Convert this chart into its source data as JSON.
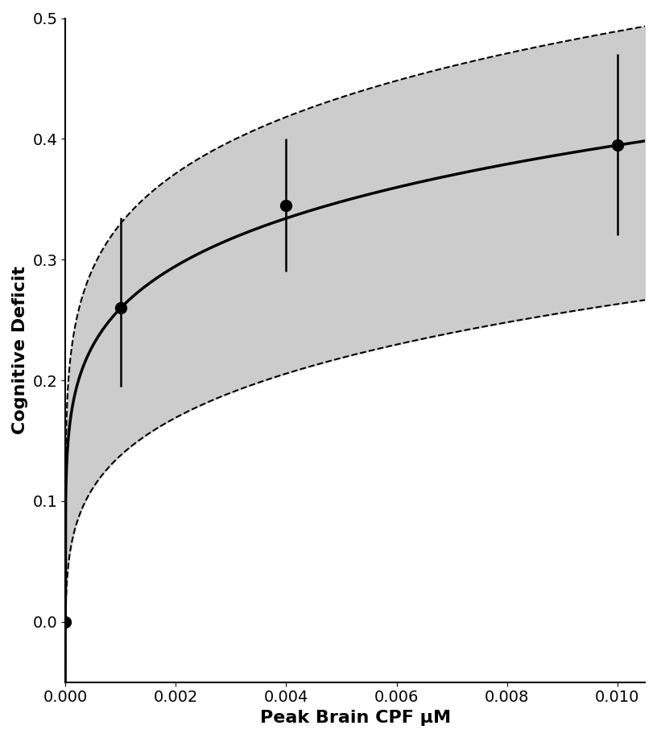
{
  "xlabel": "Peak Brain CPF μM",
  "ylabel": "Cognitive Deficit",
  "xlim": [
    0,
    0.0105
  ],
  "ylim": [
    -0.05,
    0.5
  ],
  "yticks": [
    0.0,
    0.1,
    0.2,
    0.3,
    0.4,
    0.5
  ],
  "xticks": [
    0.0,
    0.002,
    0.004,
    0.006,
    0.008,
    0.01
  ],
  "data_x": [
    0.0,
    0.001,
    0.004,
    0.01
  ],
  "data_y": [
    0.0,
    0.26,
    0.345,
    0.395
  ],
  "data_yerr_low": [
    0.115,
    0.065,
    0.055,
    0.075
  ],
  "data_yerr_high": [
    0.0,
    0.075,
    0.055,
    0.075
  ],
  "curve_a": 0.911,
  "curve_b": 0.1816,
  "upper_a": 1.22,
  "upper_b": 0.1816,
  "lower_a": 0.6,
  "lower_b": 0.1816,
  "curve_color": "#000000",
  "fill_color": "#cccccc",
  "dashed_color": "#000000",
  "point_color": "#000000",
  "linewidth": 2.5,
  "dash_linewidth": 1.5,
  "markersize": 10,
  "errorbar_linewidth": 1.8,
  "xlabel_fontsize": 16,
  "ylabel_fontsize": 16,
  "tick_fontsize": 14,
  "figsize": [
    8.16,
    9.16
  ],
  "dpi": 100
}
